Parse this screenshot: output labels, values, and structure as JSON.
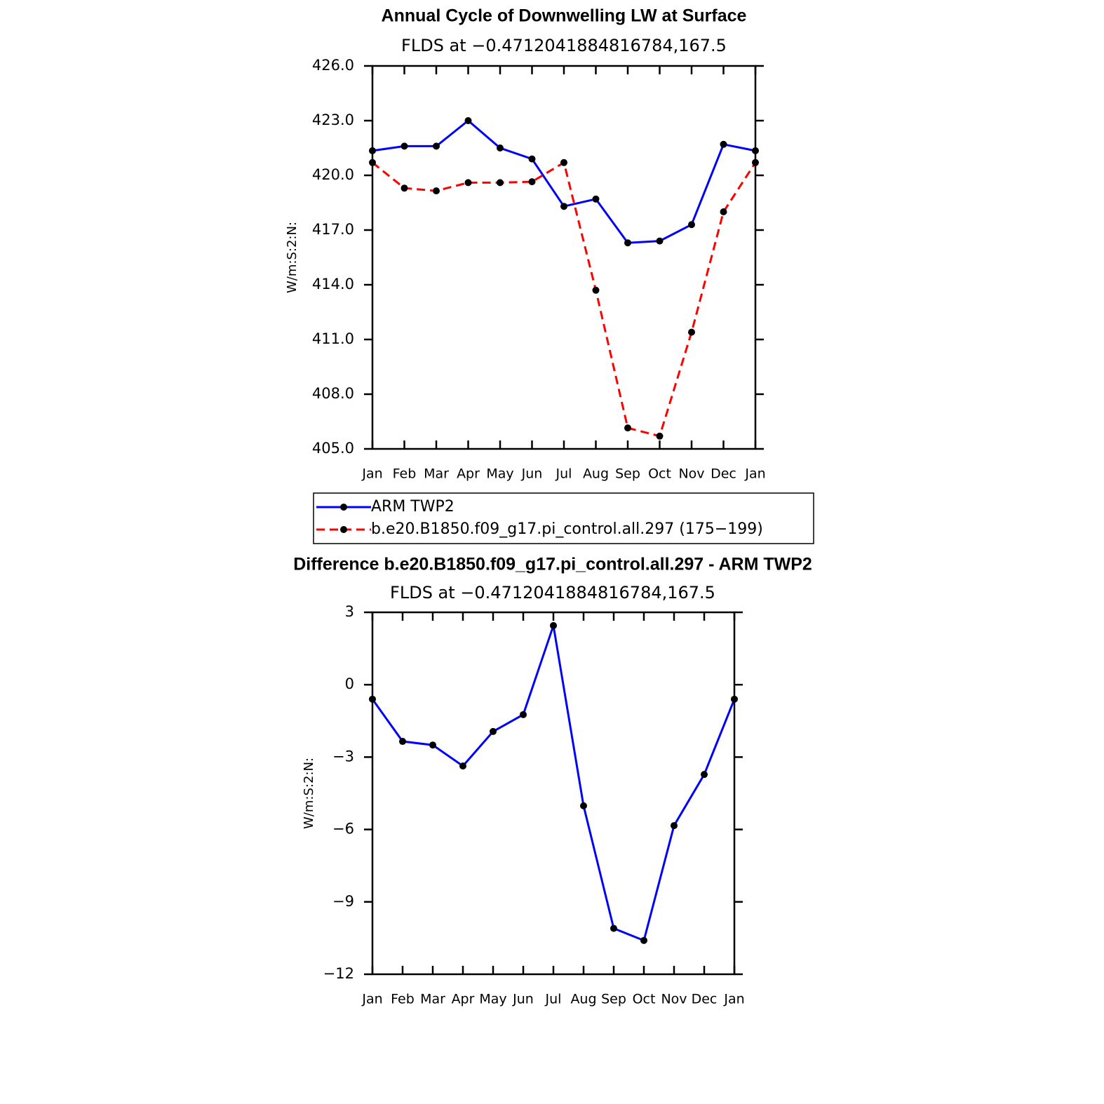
{
  "chart_data": [
    {
      "type": "line",
      "title": "Annual Cycle of Downwelling LW at Surface",
      "subtitle": "FLDS at −0.4712041884816784,167.5",
      "y_label": "W/m:S:2:N:",
      "categories": [
        "Jan",
        "Feb",
        "Mar",
        "Apr",
        "May",
        "Jun",
        "Jul",
        "Aug",
        "Sep",
        "Oct",
        "Nov",
        "Dec",
        "Jan"
      ],
      "series": [
        {
          "name": "ARM TWP2",
          "color": "#0000ff",
          "dashed": false,
          "values": [
            421.35,
            421.6,
            421.6,
            423.0,
            421.5,
            420.9,
            418.3,
            418.7,
            416.3,
            416.4,
            417.3,
            421.7,
            421.35
          ]
        },
        {
          "name": "b.e20.B1850.f09_g17.pi_control.all.297 (175−199)",
          "color": "#ff0000",
          "dashed": true,
          "values": [
            420.7,
            419.3,
            419.15,
            419.6,
            419.6,
            419.65,
            420.7,
            413.7,
            406.15,
            405.7,
            411.4,
            418.0,
            420.7
          ]
        }
      ],
      "ylim": [
        405,
        426
      ],
      "yticks": [
        {
          "value": 405,
          "label": "405.0"
        },
        {
          "value": 408,
          "label": "408.0"
        },
        {
          "value": 411,
          "label": "411.0"
        },
        {
          "value": 414,
          "label": "414.0"
        },
        {
          "value": 417,
          "label": "417.0"
        },
        {
          "value": 420,
          "label": "420.0"
        },
        {
          "value": 423,
          "label": "423.0"
        },
        {
          "value": 426,
          "label": "426.0"
        }
      ],
      "legend": "below",
      "marker_color": "#000000"
    },
    {
      "type": "line",
      "title": "Difference b.e20.B1850.f09_g17.pi_control.all.297 - ARM TWP2",
      "subtitle": "FLDS at −0.4712041884816784,167.5",
      "y_label": "W/m:S:2:N:",
      "categories": [
        "Jan",
        "Feb",
        "Mar",
        "Apr",
        "May",
        "Jun",
        "Jul",
        "Aug",
        "Sep",
        "Oct",
        "Nov",
        "Dec",
        "Jan"
      ],
      "series": [
        {
          "color": "#0000ff",
          "dashed": false,
          "values": [
            -0.6,
            -2.35,
            -2.5,
            -3.37,
            -1.94,
            -1.24,
            2.45,
            -5.02,
            -10.1,
            -10.6,
            -5.84,
            -3.72,
            -0.6
          ]
        }
      ],
      "ylim": [
        -12,
        3
      ],
      "yticks": [
        {
          "value": -12,
          "label": "−12"
        },
        {
          "value": -9,
          "label": "−9"
        },
        {
          "value": -6,
          "label": "−6"
        },
        {
          "value": -3,
          "label": "−3"
        },
        0,
        3
      ],
      "marker_color": "#000000"
    }
  ]
}
